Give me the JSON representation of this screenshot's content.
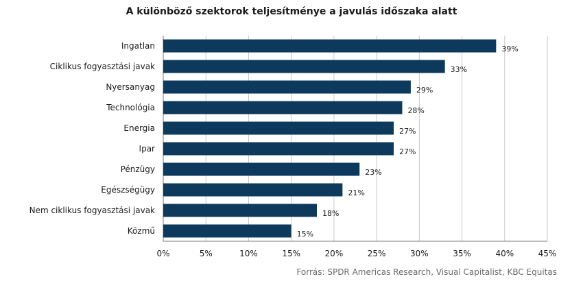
{
  "title": "A különböző szektorok teljesítménye  a javulás időszaka alatt",
  "source": "Forrás: SPDR Americas Research, Visual Capitalist, KBC Equitas",
  "chart_data": {
    "type": "bar",
    "orientation": "horizontal",
    "categories": [
      "Ingatlan",
      "Ciklikus fogyasztási javak",
      "Nyersanyag",
      "Technológia",
      "Energia",
      "Ipar",
      "Pénzügy",
      "Egészségügy",
      "Nem ciklikus fogyasztási javak",
      "Közmű"
    ],
    "values": [
      39,
      33,
      29,
      28,
      27,
      27,
      23,
      21,
      18,
      15
    ],
    "data_labels": [
      "39%",
      "33%",
      "29%",
      "28%",
      "27%",
      "27%",
      "23%",
      "21%",
      "18%",
      "15%"
    ],
    "x_ticks": [
      "0%",
      "5%",
      "10%",
      "15%",
      "20%",
      "25%",
      "30%",
      "35%",
      "40%",
      "45%"
    ],
    "xlim": [
      0,
      45
    ],
    "grid": "vertical",
    "legend": "none",
    "bar_color": "#0d3a5c",
    "grid_color": "#c8c8c8"
  }
}
